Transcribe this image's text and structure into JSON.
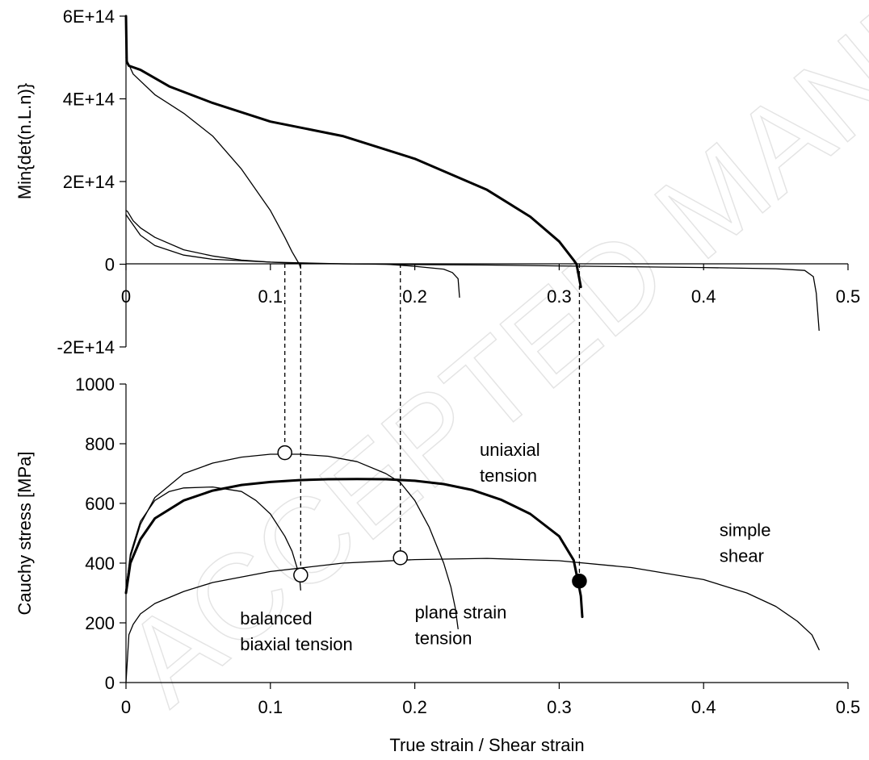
{
  "watermark": "ACCEPTED MANUSCRIPT",
  "chart_data": [
    {
      "type": "line",
      "ylabel": "Min{det(n.L.n)}",
      "xlim": [
        0,
        0.5
      ],
      "ylim": [
        -200000000000000.0,
        600000000000000.0
      ],
      "y_ticks": [
        "6E+14",
        "4E+14",
        "2E+14",
        "0",
        "-2E+14"
      ],
      "x_ticks": [
        "0",
        "0.1",
        "0.2",
        "0.3",
        "0.4",
        "0.5"
      ],
      "series": [
        {
          "key": "uniaxial",
          "width": 3.0,
          "x": [
            0,
            0.0005,
            0.002,
            0.01,
            0.03,
            0.06,
            0.1,
            0.15,
            0.2,
            0.25,
            0.28,
            0.3,
            0.31,
            0.312,
            0.315
          ],
          "y": [
            600000000000000.0,
            490000000000000.0,
            480000000000000.0,
            470000000000000.0,
            430000000000000.0,
            390000000000000.0,
            345000000000000.0,
            310000000000000.0,
            255000000000000.0,
            180000000000000.0,
            115000000000000.0,
            55000000000000.0,
            10000000000000.0,
            0,
            -55000000000000.0
          ]
        },
        {
          "key": "balanced",
          "width": 1.3,
          "x": [
            0,
            0.001,
            0.005,
            0.02,
            0.04,
            0.06,
            0.08,
            0.1,
            0.11,
            0.115,
            0.12,
            0.121
          ],
          "y": [
            500000000000000.0,
            490000000000000.0,
            460000000000000.0,
            410000000000000.0,
            365000000000000.0,
            310000000000000.0,
            230000000000000.0,
            130000000000000.0,
            65000000000000.0,
            30000000000000.0,
            0,
            -10000000000000.0
          ]
        },
        {
          "key": "plane",
          "width": 1.3,
          "x": [
            0,
            0.001,
            0.005,
            0.01,
            0.02,
            0.04,
            0.06,
            0.08,
            0.1,
            0.12,
            0.15,
            0.18,
            0.2,
            0.22,
            0.226,
            0.23,
            0.231
          ],
          "y": [
            130000000000000.0,
            128000000000000.0,
            105000000000000.0,
            88000000000000.0,
            65000000000000.0,
            35000000000000.0,
            20000000000000.0,
            10000000000000.0,
            5000000000000.0,
            2000000000000.0,
            1000000000000.0,
            0,
            -5000000000000.0,
            -12000000000000.0,
            -20000000000000.0,
            -35000000000000.0,
            -80000000000000.0
          ]
        },
        {
          "key": "shear",
          "width": 1.3,
          "x": [
            0,
            0.001,
            0.005,
            0.01,
            0.02,
            0.04,
            0.06,
            0.1,
            0.15,
            0.2,
            0.25,
            0.3,
            0.35,
            0.4,
            0.45,
            0.47,
            0.476,
            0.478,
            0.48
          ],
          "y": [
            120000000000000.0,
            115000000000000.0,
            95000000000000.0,
            70000000000000.0,
            45000000000000.0,
            22000000000000.0,
            12000000000000.0,
            5000000000000.0,
            1000000000000.0,
            -1000000000000.0,
            -2000000000000.0,
            -4000000000000.0,
            -6000000000000.0,
            -8000000000000.0,
            -11000000000000.0,
            -15000000000000.0,
            -30000000000000.0,
            -70000000000000.0,
            -160000000000000.0
          ]
        }
      ]
    },
    {
      "type": "line",
      "xlabel": "True strain / Shear strain",
      "ylabel": "Cauchy stress [MPa]",
      "xlim": [
        0,
        0.5
      ],
      "ylim": [
        0,
        1000
      ],
      "y_ticks": [
        "1000",
        "800",
        "600",
        "400",
        "200",
        "0"
      ],
      "x_ticks": [
        "0",
        "0.1",
        "0.2",
        "0.3",
        "0.4",
        "0.5"
      ],
      "series": [
        {
          "key": "uniaxial",
          "width": 3.0,
          "x": [
            0,
            0.003,
            0.01,
            0.02,
            0.04,
            0.06,
            0.08,
            0.1,
            0.12,
            0.14,
            0.16,
            0.18,
            0.2,
            0.22,
            0.24,
            0.26,
            0.28,
            0.3,
            0.31,
            0.313,
            0.315,
            0.316
          ],
          "y": [
            300,
            400,
            480,
            550,
            610,
            643,
            662,
            672,
            678,
            681,
            682,
            681,
            676,
            665,
            645,
            612,
            565,
            490,
            410,
            340,
            290,
            220
          ]
        },
        {
          "key": "balanced",
          "width": 1.3,
          "x": [
            0,
            0.003,
            0.01,
            0.02,
            0.03,
            0.04,
            0.06,
            0.08,
            0.09,
            0.1,
            0.11,
            0.115,
            0.12,
            0.121
          ],
          "y": [
            310,
            430,
            540,
            610,
            640,
            652,
            655,
            640,
            610,
            565,
            490,
            440,
            360,
            310
          ]
        },
        {
          "key": "plane",
          "width": 1.3,
          "x": [
            0,
            0.003,
            0.01,
            0.02,
            0.04,
            0.06,
            0.08,
            0.1,
            0.12,
            0.14,
            0.16,
            0.18,
            0.19,
            0.2,
            0.21,
            0.22,
            0.225,
            0.228,
            0.23
          ],
          "y": [
            320,
            420,
            530,
            620,
            700,
            735,
            755,
            765,
            765,
            758,
            740,
            700,
            670,
            610,
            520,
            400,
            320,
            250,
            180
          ]
        },
        {
          "key": "shear",
          "width": 1.3,
          "x": [
            0,
            0.002,
            0.005,
            0.01,
            0.02,
            0.04,
            0.06,
            0.1,
            0.15,
            0.2,
            0.25,
            0.3,
            0.35,
            0.4,
            0.43,
            0.45,
            0.465,
            0.475,
            0.48
          ],
          "y": [
            0,
            160,
            195,
            230,
            265,
            305,
            335,
            372,
            400,
            412,
            416,
            408,
            385,
            345,
            300,
            255,
            205,
            160,
            110
          ]
        }
      ],
      "markers": [
        {
          "x": 0.11,
          "y": 770,
          "filled": false
        },
        {
          "x": 0.121,
          "y": 360,
          "filled": false
        },
        {
          "x": 0.19,
          "y": 418,
          "filled": false
        },
        {
          "x": 0.314,
          "y": 340,
          "filled": true
        }
      ],
      "annotations": [
        {
          "lines": [
            "uniaxial",
            "tension"
          ],
          "x": 0.245,
          "y": 760
        },
        {
          "lines": [
            "simple",
            "shear"
          ],
          "x": 0.411,
          "y": 490
        },
        {
          "lines": [
            "plane strain",
            "tension"
          ],
          "x": 0.2,
          "y": 215
        },
        {
          "lines": [
            "balanced",
            "biaxial tension"
          ],
          "x": 0.079,
          "y": 195
        }
      ]
    }
  ],
  "guides": [
    0.11,
    0.121,
    0.19,
    0.314
  ]
}
